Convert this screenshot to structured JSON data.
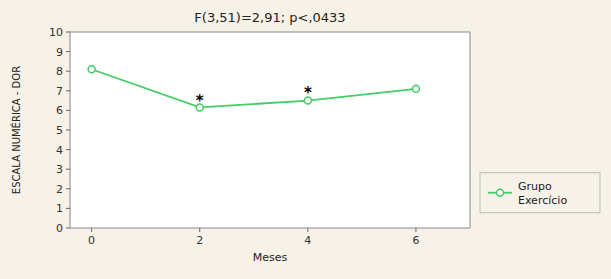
{
  "chart_data": {
    "type": "line",
    "title": "F(3,51)=2,91; p<,0433",
    "x": [
      0,
      2,
      4,
      6
    ],
    "series": [
      {
        "name": "Grupo\nExercício",
        "color": "#44cc66",
        "marker": "circle",
        "values": [
          8.1,
          6.15,
          6.5,
          7.1
        ]
      }
    ],
    "xlabel": "Meses",
    "ylabel": "ESCALA NUMÉRICA - DOR",
    "xlim": [
      -0.4,
      7.0
    ],
    "ylim": [
      0,
      10
    ],
    "xticks": [
      0,
      2,
      4,
      6
    ],
    "yticks": [
      0,
      1,
      2,
      3,
      4,
      5,
      6,
      7,
      8,
      9,
      10
    ],
    "annotations": [
      {
        "text": "*",
        "x": 2,
        "y": 6.62
      },
      {
        "text": "*",
        "x": 4,
        "y": 7.05
      }
    ],
    "grid": false,
    "legend": "right"
  }
}
